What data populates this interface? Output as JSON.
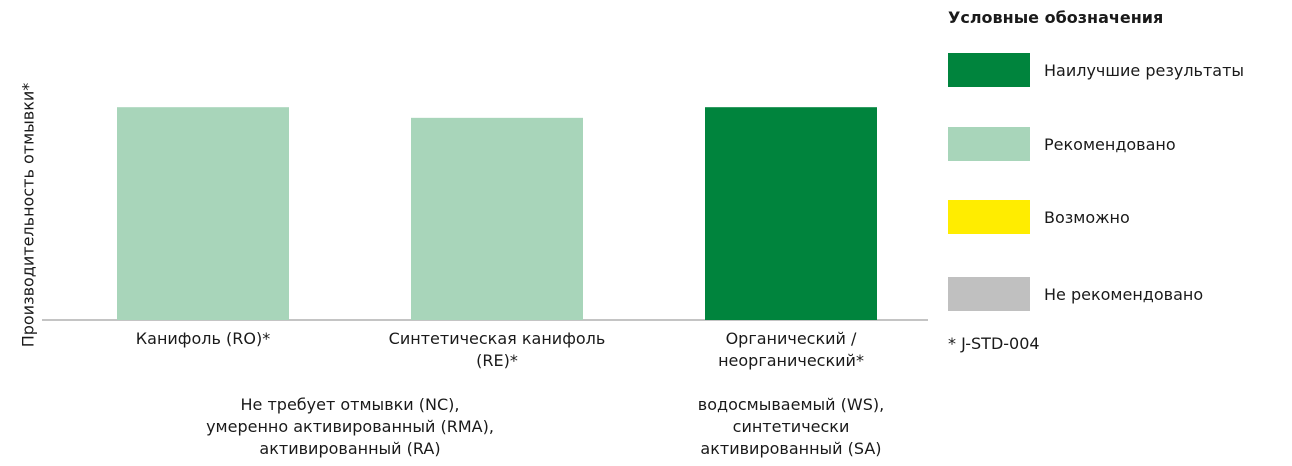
{
  "chart_data": {
    "type": "bar",
    "ylabel": "Производительность отмывки*",
    "categories": [
      "Канифоль (RO)*",
      "Синтетическая канифоль\n(RE)*",
      "Органический /\nнеорганический*"
    ],
    "values": [
      4,
      3.8,
      4
    ],
    "bar_legend_keys": [
      "Рекомендовано",
      "Рекомендовано",
      "Наилучшие результаты"
    ],
    "ylim": [
      0,
      5
    ],
    "grid": false,
    "group_labels": [
      "Не требует отмывки (NC),\nумеренно активированный (RMA),\nактивированный (RA)",
      "водосмываемый (WS),\nсинтетически\nактивированный (SA)"
    ],
    "legend": {
      "title": "Условные обозначения",
      "placement": "right",
      "items": [
        {
          "label": "Наилучшие результаты",
          "color": "#00843d"
        },
        {
          "label": "Рекомендовано",
          "color": "#a8d5ba"
        },
        {
          "label": "Возможно",
          "color": "#ffed00"
        },
        {
          "label": "Не рекомендовано",
          "color": "#c0c0c0"
        }
      ]
    },
    "footnote": "* J-STD-004"
  }
}
